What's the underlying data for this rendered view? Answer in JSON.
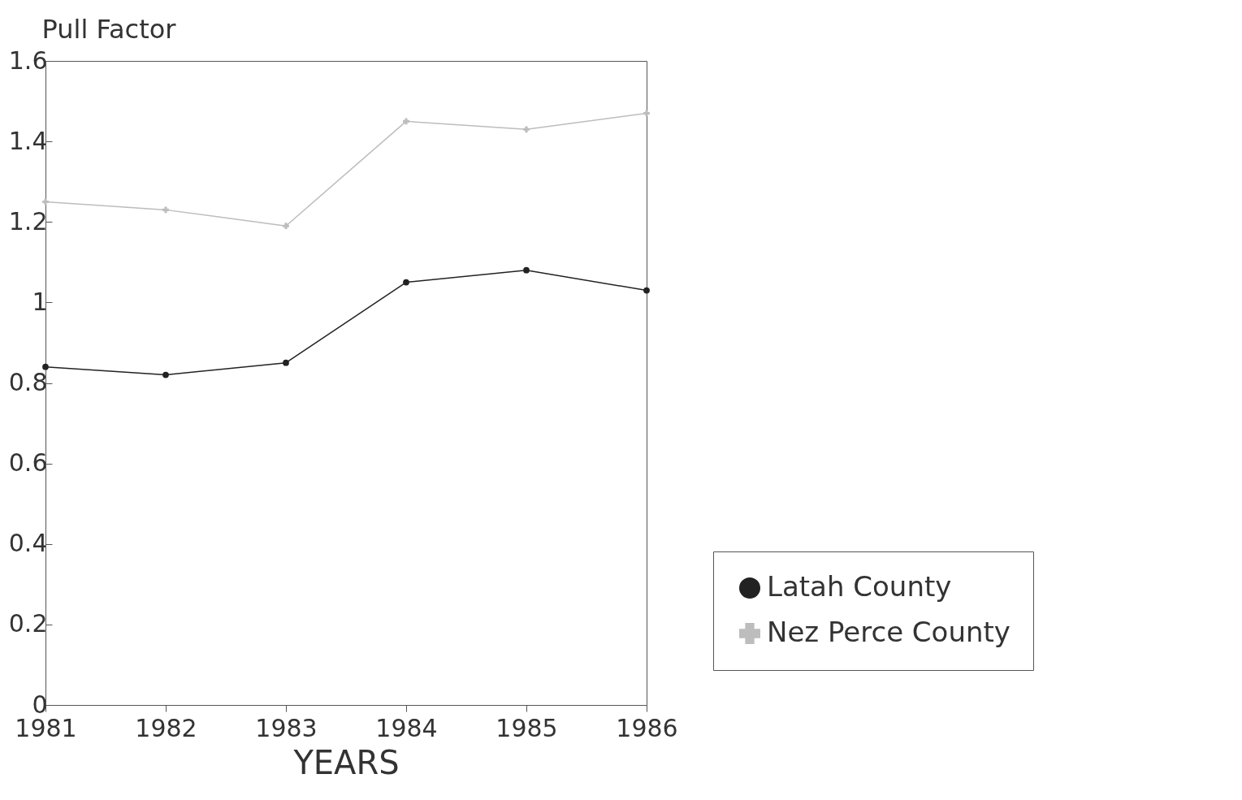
{
  "chart_data": {
    "type": "line",
    "ylabel": "Pull Factor",
    "xlabel": "YEARS",
    "x": [
      1981,
      1982,
      1983,
      1984,
      1985,
      1986
    ],
    "xlim": [
      1981,
      1986
    ],
    "xticks": [
      1981,
      1982,
      1983,
      1984,
      1985,
      1986
    ],
    "ylim": [
      0,
      1.6
    ],
    "yticks": [
      0,
      0.2,
      0.4,
      0.6,
      0.8,
      1,
      1.2,
      1.4,
      1.6
    ],
    "grid": false,
    "legend": "bottom right",
    "line_style": "solid",
    "series": [
      {
        "name": "Latah County",
        "color": "#222222",
        "marker": "circle",
        "values": [
          0.84,
          0.82,
          0.85,
          1.05,
          1.08,
          1.03
        ]
      },
      {
        "name": "Nez Perce County",
        "color": "#bdbdbd",
        "marker": "cross",
        "values": [
          1.25,
          1.23,
          1.19,
          1.45,
          1.43,
          1.47
        ]
      }
    ]
  }
}
